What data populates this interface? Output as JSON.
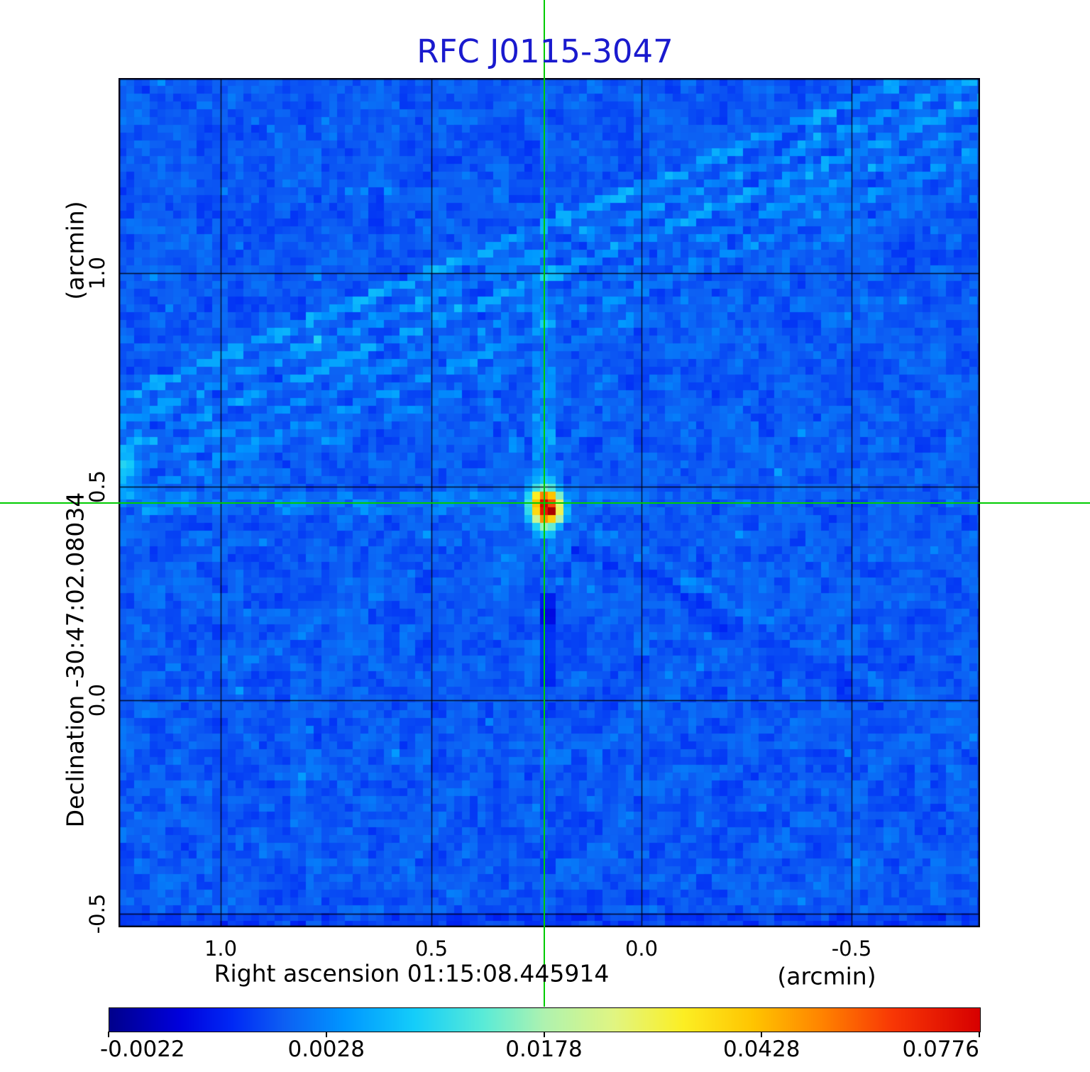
{
  "title": {
    "text": "RFC J0115-3047",
    "color": "#1a1ace"
  },
  "axes": {
    "x": {
      "title": "Right ascension  01:15:08.445914",
      "unit": "(arcmin)",
      "ticks": [
        "1.0",
        "0.5",
        "0.0",
        "-0.5"
      ]
    },
    "y": {
      "title": "Declination  -30:47:02.08034",
      "unit": "(arcmin)",
      "ticks": [
        "1.0",
        "0.5",
        "0.0",
        "-0.5"
      ]
    }
  },
  "colorbar": {
    "labels": [
      "-0.0022",
      "0.0028",
      "0.0178",
      "0.0428",
      "0.0776"
    ]
  },
  "crosshair": {
    "color": "#00cc00"
  },
  "chart_data": {
    "type": "heatmap",
    "title": "RFC J0115-3047",
    "x_axis": {
      "label": "Right ascension",
      "center_value": "01:15:08.445914",
      "unit": "arcmin",
      "ticks": [
        1.0,
        0.5,
        0.0,
        -0.5
      ],
      "range": [
        1.24,
        -0.8
      ]
    },
    "y_axis": {
      "label": "Declination",
      "center_value": "-30:47:02.08034",
      "unit": "arcmin",
      "ticks": [
        1.0,
        0.5,
        0.0,
        -0.5
      ],
      "range": [
        -0.53,
        1.46
      ]
    },
    "grid": true,
    "colorbar": {
      "tick_values": [
        -0.0022,
        0.0028,
        0.0178,
        0.0428,
        0.0776
      ],
      "tick_positions": [
        0,
        0.25,
        0.5,
        0.75,
        1
      ],
      "scale": "sqrt",
      "vmin": -0.0022,
      "vmax": 0.0776
    },
    "source": {
      "name": "RFC J0115-3047",
      "peak_offset_arcmin": {
        "ra": 0.23,
        "dec": 0.48
      },
      "peak_value": 0.0776,
      "marked_by": "green crosshair"
    }
  }
}
